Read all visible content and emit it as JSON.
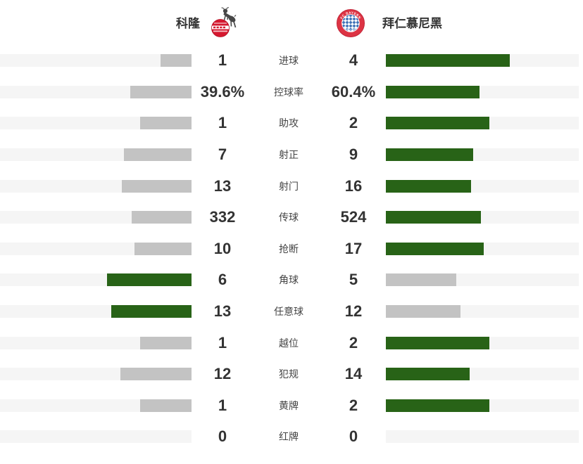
{
  "teams": {
    "home": {
      "name": "科隆",
      "logo": "koeln-crest"
    },
    "away": {
      "name": "拜仁慕尼黑",
      "logo": "bayern-crest"
    }
  },
  "stats": {
    "rows": [
      {
        "label": "进球",
        "home": "1",
        "away": "4"
      },
      {
        "label": "控球率",
        "home": "39.6%",
        "away": "60.4%"
      },
      {
        "label": "助攻",
        "home": "1",
        "away": "2"
      },
      {
        "label": "射正",
        "home": "7",
        "away": "9"
      },
      {
        "label": "射门",
        "home": "13",
        "away": "16"
      },
      {
        "label": "传球",
        "home": "332",
        "away": "524"
      },
      {
        "label": "抢断",
        "home": "10",
        "away": "17"
      },
      {
        "label": "角球",
        "home": "6",
        "away": "5"
      },
      {
        "label": "任意球",
        "home": "13",
        "away": "12"
      },
      {
        "label": "越位",
        "home": "1",
        "away": "2"
      },
      {
        "label": "犯规",
        "home": "12",
        "away": "14"
      },
      {
        "label": "黄牌",
        "home": "1",
        "away": "2"
      },
      {
        "label": "红牌",
        "home": "0",
        "away": "0"
      }
    ]
  },
  "colors": {
    "bar_leader": "#286317",
    "bar_trailer": "#c3c3c3",
    "track": "#f5f5f5",
    "value_text": "#333333",
    "label_text": "#444444",
    "koeln_red": "#d5182f",
    "goat_dark": "#474747",
    "bayern_red": "#dd3444",
    "bayern_blue": "#4073b8"
  },
  "chart_data": {
    "type": "bar",
    "orientation": "horizontal-paired",
    "categories": [
      "进球",
      "控球率",
      "助攻",
      "射正",
      "射门",
      "传球",
      "抢断",
      "角球",
      "任意球",
      "越位",
      "犯规",
      "黄牌",
      "红牌"
    ],
    "series": [
      {
        "name": "科隆",
        "values": [
          1,
          39.6,
          1,
          7,
          13,
          332,
          10,
          6,
          13,
          1,
          12,
          1,
          0
        ],
        "display": [
          "1",
          "39.6%",
          "1",
          "7",
          "13",
          "332",
          "10",
          "6",
          "13",
          "1",
          "12",
          "1",
          "0"
        ]
      },
      {
        "name": "拜仁慕尼黑",
        "values": [
          4,
          60.4,
          2,
          9,
          16,
          524,
          17,
          5,
          12,
          2,
          14,
          2,
          0
        ],
        "display": [
          "4",
          "60.4%",
          "2",
          "9",
          "16",
          "524",
          "17",
          "5",
          "12",
          "2",
          "14",
          "2",
          "0"
        ]
      }
    ],
    "layout_hints": {
      "bar_scaling": "bar width proportional to value share of row total, max 220px per side",
      "leader_color": "#286317",
      "trailer_color": "#c3c3c3",
      "legend_position": "header row with team crests"
    }
  }
}
